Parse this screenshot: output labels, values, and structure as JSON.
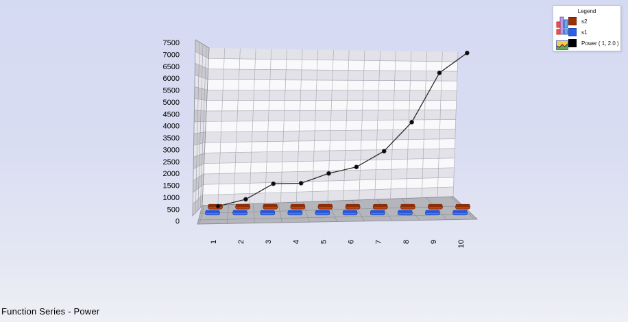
{
  "title": "Function Series - Power",
  "legend": {
    "title": "Legend",
    "entries": [
      {
        "label": "s2",
        "color": "#9c3000"
      },
      {
        "label": "s1",
        "color": "#2e5fe8"
      },
      {
        "label": "Power ( 1, 2.0 )",
        "color": "#000000"
      }
    ]
  },
  "chart_data": {
    "type": "mixed-3d",
    "title": "Function Series - Power",
    "xlabel": "",
    "ylabel": "",
    "categories": [
      "1",
      "2",
      "3",
      "4",
      "5",
      "6",
      "7",
      "8",
      "9",
      "10"
    ],
    "yticks": [
      "0",
      "500",
      "1000",
      "1500",
      "2000",
      "2500",
      "3000",
      "3500",
      "4000",
      "4500",
      "5000",
      "5500",
      "6000",
      "6500",
      "7000",
      "7500"
    ],
    "ylim": [
      0,
      7500
    ],
    "ytick_step": 500,
    "legend_position": "top-right",
    "grid": true,
    "series": [
      {
        "name": "s2",
        "type": "bar",
        "color_top": "#8e2e07",
        "color_face": "#c2440e",
        "color_edge": "#5f1e04",
        "values": [
          100,
          100,
          100,
          100,
          100,
          100,
          100,
          100,
          100,
          100
        ]
      },
      {
        "name": "s1",
        "type": "bar",
        "color_top": "#2a54d4",
        "color_face": "#3f79f9",
        "color_edge": "#16307e",
        "values": [
          100,
          100,
          100,
          100,
          100,
          100,
          100,
          100,
          100,
          100
        ]
      },
      {
        "name": "Power ( 1, 2.0 )",
        "type": "line",
        "color": "#2b2b2b",
        "marker_color": "#0a0a0a",
        "values": [
          600,
          890,
          1540,
          1560,
          1970,
          2240,
          2900,
          4110,
          6170,
          7000
        ]
      }
    ]
  },
  "colors": {
    "wall_band_dark": "#e2e2e8",
    "wall_band_light": "#f9f9fb",
    "side_band_dark": "#c9c9cf",
    "side_band_light": "#e6e6eb",
    "wall_line": "#aeaeb9",
    "floor_fill": "#b5b6bc",
    "floor_line": "#8a8a93",
    "axis_text": "#000000"
  }
}
